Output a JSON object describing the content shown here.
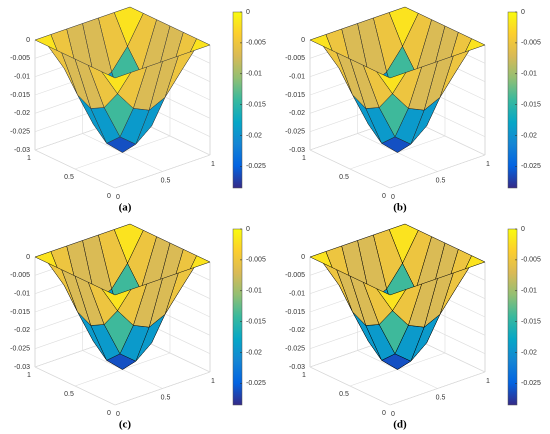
{
  "chart_data": [
    {
      "type": "surface",
      "label": "(a)",
      "edgecolor": "#333",
      "x": [
        0,
        0.1667,
        0.3333,
        0.5,
        0.6667,
        0.8333,
        1
      ],
      "y": [
        0,
        0.1667,
        0.3333,
        0.5,
        0.6667,
        0.8333,
        1
      ],
      "z": [
        [
          0,
          0,
          0,
          0,
          0,
          0,
          0
        ],
        [
          0,
          -0.0075,
          -0.013,
          -0.015,
          -0.013,
          -0.0075,
          0
        ],
        [
          0,
          -0.013,
          -0.0225,
          -0.026,
          -0.0225,
          -0.013,
          0
        ],
        [
          0,
          -0.015,
          -0.026,
          -0.03,
          -0.026,
          -0.015,
          0
        ],
        [
          0,
          -0.013,
          -0.0225,
          -0.026,
          -0.0225,
          -0.013,
          0
        ],
        [
          0,
          -0.0075,
          -0.013,
          -0.015,
          -0.013,
          -0.0075,
          0
        ],
        [
          0,
          0,
          0,
          0,
          0,
          0,
          0
        ]
      ],
      "xlim": [
        0,
        1
      ],
      "ylim": [
        0,
        1
      ],
      "zlim": [
        -0.03,
        0
      ],
      "xticks": [
        0,
        0.5,
        1
      ],
      "yticks": [
        0,
        0.5,
        1
      ],
      "zticks": [
        0,
        -0.005,
        -0.01,
        -0.015,
        -0.02,
        -0.025,
        -0.03
      ],
      "clim": [
        -0.0285,
        0
      ],
      "cticks": [
        0,
        -0.005,
        -0.01,
        -0.015,
        -0.02,
        -0.025
      ],
      "colormap": [
        "#352a87",
        "#0363e1",
        "#1485d4",
        "#06a7c6",
        "#38b99e",
        "#92bf73",
        "#d9ba56",
        "#fcce2e",
        "#f9fb0e"
      ]
    },
    {
      "type": "surface",
      "label": "(b)",
      "edgecolor": "#222",
      "x": [
        0,
        0.1667,
        0.3333,
        0.5,
        0.6667,
        0.8333,
        1
      ],
      "y": [
        0,
        0.1667,
        0.3333,
        0.5,
        0.6667,
        0.8333,
        1
      ],
      "z": [
        [
          0,
          0,
          0,
          0,
          0,
          0,
          0
        ],
        [
          0,
          -0.0075,
          -0.013,
          -0.015,
          -0.013,
          -0.0075,
          0
        ],
        [
          0,
          -0.013,
          -0.0225,
          -0.026,
          -0.0225,
          -0.013,
          0
        ],
        [
          0,
          -0.015,
          -0.026,
          -0.03,
          -0.026,
          -0.015,
          0
        ],
        [
          0,
          -0.013,
          -0.0225,
          -0.026,
          -0.0225,
          -0.013,
          0
        ],
        [
          0,
          -0.0075,
          -0.013,
          -0.015,
          -0.013,
          -0.0075,
          0
        ],
        [
          0,
          0,
          0,
          0,
          0,
          0,
          0
        ]
      ],
      "xlim": [
        0,
        1
      ],
      "ylim": [
        0,
        1
      ],
      "zlim": [
        -0.03,
        0
      ],
      "xticks": [
        0,
        0.5,
        1
      ],
      "yticks": [
        0,
        0.5,
        1
      ],
      "zticks": [
        0,
        -0.005,
        -0.01,
        -0.015,
        -0.02,
        -0.025,
        -0.03
      ],
      "clim": [
        -0.0285,
        0
      ],
      "cticks": [
        0,
        -0.005,
        -0.01,
        -0.015,
        -0.02,
        -0.025
      ],
      "colormap": [
        "#352a87",
        "#0363e1",
        "#1485d4",
        "#06a7c6",
        "#38b99e",
        "#92bf73",
        "#d9ba56",
        "#fcce2e",
        "#f9fb0e"
      ]
    },
    {
      "type": "surface",
      "label": "(c)",
      "edgecolor": "#111",
      "x": [
        0,
        0.1667,
        0.3333,
        0.5,
        0.6667,
        0.8333,
        1
      ],
      "y": [
        0,
        0.1667,
        0.3333,
        0.5,
        0.6667,
        0.8333,
        1
      ],
      "z": [
        [
          0,
          0,
          0,
          0,
          0,
          0,
          0
        ],
        [
          0,
          -0.0075,
          -0.013,
          -0.015,
          -0.013,
          -0.0075,
          0
        ],
        [
          0,
          -0.013,
          -0.0225,
          -0.026,
          -0.0225,
          -0.013,
          0
        ],
        [
          0,
          -0.015,
          -0.026,
          -0.03,
          -0.026,
          -0.015,
          0
        ],
        [
          0,
          -0.013,
          -0.0225,
          -0.026,
          -0.0225,
          -0.013,
          0
        ],
        [
          0,
          -0.0075,
          -0.013,
          -0.015,
          -0.013,
          -0.0075,
          0
        ],
        [
          0,
          0,
          0,
          0,
          0,
          0,
          0
        ]
      ],
      "xlim": [
        0,
        1
      ],
      "ylim": [
        0,
        1
      ],
      "zlim": [
        -0.03,
        0
      ],
      "xticks": [
        0,
        0.5,
        1
      ],
      "yticks": [
        0,
        0.5,
        1
      ],
      "zticks": [
        0,
        -0.005,
        -0.01,
        -0.015,
        -0.02,
        -0.025,
        -0.03
      ],
      "clim": [
        -0.0285,
        0
      ],
      "cticks": [
        0,
        -0.005,
        -0.01,
        -0.015,
        -0.02,
        -0.025
      ],
      "colormap": [
        "#352a87",
        "#0363e1",
        "#1485d4",
        "#06a7c6",
        "#38b99e",
        "#92bf73",
        "#d9ba56",
        "#fcce2e",
        "#f9fb0e"
      ]
    },
    {
      "type": "surface",
      "label": "(d)",
      "edgecolor": "#000",
      "x": [
        0,
        0.1667,
        0.3333,
        0.5,
        0.6667,
        0.8333,
        1
      ],
      "y": [
        0,
        0.1667,
        0.3333,
        0.5,
        0.6667,
        0.8333,
        1
      ],
      "z": [
        [
          0,
          0,
          0,
          0,
          0,
          0,
          0
        ],
        [
          0,
          -0.0075,
          -0.013,
          -0.015,
          -0.013,
          -0.0075,
          0
        ],
        [
          0,
          -0.013,
          -0.0225,
          -0.026,
          -0.0225,
          -0.013,
          0
        ],
        [
          0,
          -0.015,
          -0.026,
          -0.03,
          -0.026,
          -0.015,
          0
        ],
        [
          0,
          -0.013,
          -0.0225,
          -0.026,
          -0.0225,
          -0.013,
          0
        ],
        [
          0,
          -0.0075,
          -0.013,
          -0.015,
          -0.013,
          -0.0075,
          0
        ],
        [
          0,
          0,
          0,
          0,
          0,
          0,
          0
        ]
      ],
      "xlim": [
        0,
        1
      ],
      "ylim": [
        0,
        1
      ],
      "zlim": [
        -0.03,
        0
      ],
      "xticks": [
        0,
        0.5,
        1
      ],
      "yticks": [
        0,
        0.5,
        1
      ],
      "zticks": [
        0,
        -0.005,
        -0.01,
        -0.015,
        -0.02,
        -0.025,
        -0.03
      ],
      "clim": [
        -0.0285,
        0
      ],
      "cticks": [
        0,
        -0.005,
        -0.01,
        -0.015,
        -0.02,
        -0.025
      ],
      "colormap": [
        "#352a87",
        "#0363e1",
        "#1485d4",
        "#06a7c6",
        "#38b99e",
        "#92bf73",
        "#d9ba56",
        "#fcce2e",
        "#f9fb0e"
      ]
    }
  ]
}
